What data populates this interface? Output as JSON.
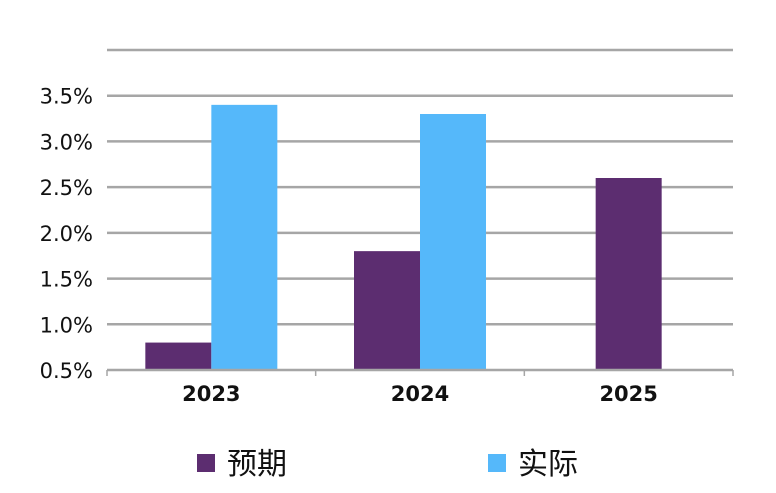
{
  "chart_data": {
    "type": "bar",
    "categories": [
      "2023",
      "2024",
      "2025"
    ],
    "series": [
      {
        "name": "预期",
        "color": "#5c2d70",
        "values": [
          0.8,
          1.8,
          2.6
        ]
      },
      {
        "name": "实际",
        "color": "#55b8fa",
        "values": [
          3.4,
          3.3,
          null
        ]
      }
    ],
    "yticks": [
      "0.5%",
      "1.0%",
      "1.5%",
      "2.0%",
      "2.5%",
      "3.0%",
      "3.5%"
    ],
    "ylim": [
      0.5,
      4.0
    ],
    "grid": true,
    "legend": "bottom",
    "title": "",
    "xlabel": "",
    "ylabel": ""
  }
}
